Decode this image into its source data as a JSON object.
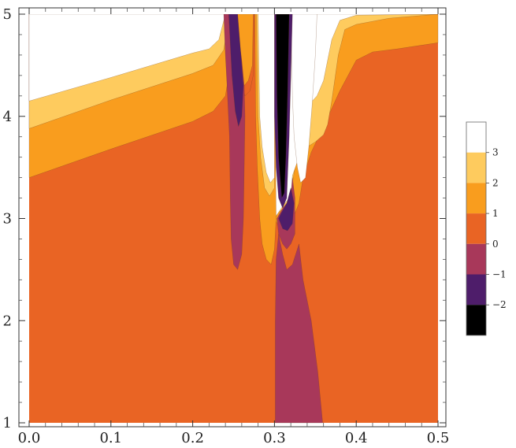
{
  "chart_data": {
    "type": "contour",
    "title": "",
    "xlabel": "",
    "ylabel": "",
    "xlim": [
      0.0,
      0.5
    ],
    "ylim": [
      1,
      5
    ],
    "x_ticks": [
      "0.0",
      "0.1",
      "0.2",
      "0.3",
      "0.4",
      "0.5"
    ],
    "y_ticks": [
      "1",
      "2",
      "3",
      "4",
      "5"
    ],
    "legend": {
      "placement": "right",
      "levels": [
        {
          "label": "3",
          "color": "#ffffff"
        },
        {
          "label": "2",
          "color": "#fecb5e"
        },
        {
          "label": "1",
          "color": "#f99d1e"
        },
        {
          "label": "0",
          "color": "#e96424"
        },
        {
          "label": "−1",
          "color": "#a8385a"
        },
        {
          "label": "−2",
          "color": "#4e1d6a"
        },
        {
          "label": "",
          "color": "#000000"
        }
      ],
      "labels": [
        "3",
        "2",
        "1",
        "0",
        "−1",
        "−2"
      ]
    },
    "regions": [
      {
        "level": "0",
        "color": "#e96424",
        "fill_base": true
      },
      {
        "level": "1",
        "color": "#f99d1e",
        "points": [
          [
            0.0,
            3.4
          ],
          [
            0.1,
            3.68
          ],
          [
            0.2,
            3.95
          ],
          [
            0.225,
            4.05
          ],
          [
            0.24,
            4.2
          ],
          [
            0.248,
            4.6
          ],
          [
            0.252,
            5.0
          ],
          [
            0.3,
            5.0
          ],
          [
            0.3,
            3.0
          ],
          [
            0.31,
            2.85
          ],
          [
            0.325,
            3.05
          ],
          [
            0.33,
            3.15
          ],
          [
            0.335,
            3.4
          ],
          [
            0.345,
            3.65
          ],
          [
            0.36,
            3.9
          ],
          [
            0.38,
            4.25
          ],
          [
            0.4,
            4.55
          ],
          [
            0.42,
            4.63
          ],
          [
            0.45,
            4.66
          ],
          [
            0.5,
            4.72
          ],
          [
            0.5,
            5.0
          ],
          [
            0.0,
            5.0
          ]
        ]
      },
      {
        "level": "2",
        "color": "#fecb5e",
        "points": [
          [
            0.0,
            3.88
          ],
          [
            0.1,
            4.16
          ],
          [
            0.2,
            4.42
          ],
          [
            0.225,
            4.5
          ],
          [
            0.238,
            4.65
          ],
          [
            0.245,
            5.0
          ],
          [
            0.3,
            5.0
          ],
          [
            0.3,
            3.0
          ],
          [
            0.305,
            3.06
          ],
          [
            0.318,
            3.15
          ],
          [
            0.322,
            3.35
          ],
          [
            0.325,
            3.5
          ],
          [
            0.33,
            3.65
          ],
          [
            0.34,
            3.7
          ],
          [
            0.35,
            3.75
          ],
          [
            0.36,
            3.82
          ],
          [
            0.365,
            3.92
          ],
          [
            0.37,
            4.15
          ],
          [
            0.378,
            4.6
          ],
          [
            0.386,
            4.85
          ],
          [
            0.4,
            4.9
          ],
          [
            0.44,
            4.96
          ],
          [
            0.5,
            5.0
          ],
          [
            0.0,
            5.0
          ]
        ]
      },
      {
        "level": "3",
        "color": "#ffffff",
        "points": [
          [
            0.0,
            4.15
          ],
          [
            0.1,
            4.38
          ],
          [
            0.2,
            4.62
          ],
          [
            0.22,
            4.66
          ],
          [
            0.232,
            4.75
          ],
          [
            0.24,
            5.0
          ],
          [
            0.3,
            5.0
          ],
          [
            0.3,
            3.0
          ],
          [
            0.31,
            3.12
          ],
          [
            0.32,
            3.22
          ],
          [
            0.322,
            3.42
          ],
          [
            0.33,
            3.6
          ],
          [
            0.335,
            3.8
          ],
          [
            0.338,
            4.0
          ],
          [
            0.345,
            4.14
          ],
          [
            0.352,
            4.2
          ],
          [
            0.36,
            4.35
          ],
          [
            0.37,
            4.75
          ],
          [
            0.38,
            4.94
          ],
          [
            0.4,
            4.99
          ],
          [
            0.5,
            5.0
          ],
          [
            0.0,
            5.0
          ]
        ]
      },
      {
        "level": "0",
        "color": "#e96424",
        "points": [
          [
            0.254,
            5.0
          ],
          [
            0.256,
            4.4
          ],
          [
            0.26,
            4.3
          ],
          [
            0.264,
            4.2
          ],
          [
            0.27,
            4.25
          ],
          [
            0.274,
            4.4
          ],
          [
            0.275,
            5.0
          ]
        ]
      },
      {
        "level": "1",
        "color": "#f99d1e",
        "points": [
          [
            0.255,
            5.0
          ],
          [
            0.258,
            4.45
          ],
          [
            0.263,
            4.3
          ],
          [
            0.268,
            4.35
          ],
          [
            0.273,
            4.5
          ],
          [
            0.274,
            5.0
          ]
        ]
      },
      {
        "level": "1",
        "color": "#f99d1e",
        "points": [
          [
            0.276,
            5.0
          ],
          [
            0.277,
            4.0
          ],
          [
            0.279,
            3.5
          ],
          [
            0.282,
            3.0
          ],
          [
            0.285,
            2.75
          ],
          [
            0.29,
            2.6
          ],
          [
            0.296,
            2.55
          ],
          [
            0.3,
            2.7
          ],
          [
            0.302,
            3.0
          ],
          [
            0.3,
            5.0
          ]
        ]
      },
      {
        "level": "2",
        "color": "#fecb5e",
        "points": [
          [
            0.278,
            5.0
          ],
          [
            0.28,
            4.0
          ],
          [
            0.283,
            3.6
          ],
          [
            0.288,
            3.3
          ],
          [
            0.294,
            3.22
          ],
          [
            0.3,
            3.3
          ],
          [
            0.3,
            5.0
          ]
        ]
      },
      {
        "level": "3",
        "color": "#ffffff",
        "points": [
          [
            0.28,
            5.0
          ],
          [
            0.282,
            4.0
          ],
          [
            0.285,
            3.7
          ],
          [
            0.29,
            3.45
          ],
          [
            0.295,
            3.35
          ],
          [
            0.3,
            3.4
          ],
          [
            0.3,
            5.0
          ]
        ]
      },
      {
        "level": "−1",
        "color": "#a8385a",
        "points": [
          [
            0.238,
            5.0
          ],
          [
            0.24,
            4.6
          ],
          [
            0.242,
            4.3
          ],
          [
            0.245,
            3.8
          ],
          [
            0.246,
            3.2
          ],
          [
            0.247,
            2.8
          ],
          [
            0.25,
            2.55
          ],
          [
            0.255,
            2.5
          ],
          [
            0.26,
            2.65
          ],
          [
            0.262,
            3.0
          ],
          [
            0.263,
            3.5
          ],
          [
            0.264,
            4.0
          ],
          [
            0.263,
            4.3
          ],
          [
            0.26,
            4.55
          ],
          [
            0.256,
            4.8
          ],
          [
            0.254,
            5.0
          ]
        ]
      },
      {
        "level": "−2",
        "color": "#4e1d6a",
        "points": [
          [
            0.244,
            5.0
          ],
          [
            0.248,
            4.4
          ],
          [
            0.252,
            4.05
          ],
          [
            0.256,
            3.9
          ],
          [
            0.26,
            4.0
          ],
          [
            0.262,
            4.3
          ],
          [
            0.258,
            4.7
          ],
          [
            0.255,
            5.0
          ]
        ]
      },
      {
        "level": "−1",
        "color": "#a8385a",
        "points": [
          [
            0.301,
            1.0
          ],
          [
            0.301,
            2.0
          ],
          [
            0.302,
            2.6
          ],
          [
            0.305,
            2.85
          ],
          [
            0.31,
            2.65
          ],
          [
            0.315,
            2.5
          ],
          [
            0.322,
            2.55
          ],
          [
            0.33,
            2.75
          ],
          [
            0.335,
            2.4
          ],
          [
            0.345,
            2.0
          ],
          [
            0.353,
            1.5
          ],
          [
            0.359,
            1.0
          ]
        ]
      },
      {
        "level": "−1",
        "color": "#a8385a",
        "points": [
          [
            0.303,
            3.0
          ],
          [
            0.305,
            2.85
          ],
          [
            0.31,
            2.75
          ],
          [
            0.315,
            2.7
          ],
          [
            0.32,
            2.75
          ],
          [
            0.325,
            2.85
          ],
          [
            0.325,
            3.2
          ],
          [
            0.322,
            3.4
          ],
          [
            0.32,
            3.2
          ],
          [
            0.31,
            3.1
          ]
        ]
      },
      {
        "level": "−2",
        "color": "#4e1d6a",
        "points": [
          [
            0.305,
            3.0
          ],
          [
            0.31,
            2.9
          ],
          [
            0.316,
            2.88
          ],
          [
            0.322,
            2.95
          ],
          [
            0.324,
            3.15
          ],
          [
            0.32,
            3.3
          ],
          [
            0.315,
            3.15
          ],
          [
            0.308,
            3.05
          ]
        ]
      },
      {
        "level": "3",
        "color": "#ffffff",
        "points": [
          [
            0.32,
            5.0
          ],
          [
            0.322,
            4.2
          ],
          [
            0.324,
            3.8
          ],
          [
            0.328,
            3.5
          ],
          [
            0.332,
            3.35
          ],
          [
            0.338,
            3.4
          ],
          [
            0.342,
            3.7
          ],
          [
            0.346,
            4.1
          ],
          [
            0.35,
            4.6
          ],
          [
            0.352,
            5.0
          ]
        ]
      },
      {
        "level": "−2",
        "color": "#4e1d6a",
        "points": [
          [
            0.3,
            5.0
          ],
          [
            0.3,
            4.0
          ],
          [
            0.302,
            3.5
          ],
          [
            0.305,
            3.2
          ],
          [
            0.31,
            3.1
          ],
          [
            0.315,
            3.2
          ],
          [
            0.318,
            3.8
          ],
          [
            0.32,
            4.4
          ],
          [
            0.322,
            5.0
          ]
        ]
      },
      {
        "level": "",
        "color": "#000000",
        "points": [
          [
            0.302,
            5.0
          ],
          [
            0.303,
            4.2
          ],
          [
            0.305,
            3.6
          ],
          [
            0.309,
            3.2
          ],
          [
            0.312,
            3.25
          ],
          [
            0.314,
            3.6
          ],
          [
            0.316,
            4.2
          ],
          [
            0.318,
            5.0
          ]
        ]
      }
    ]
  }
}
